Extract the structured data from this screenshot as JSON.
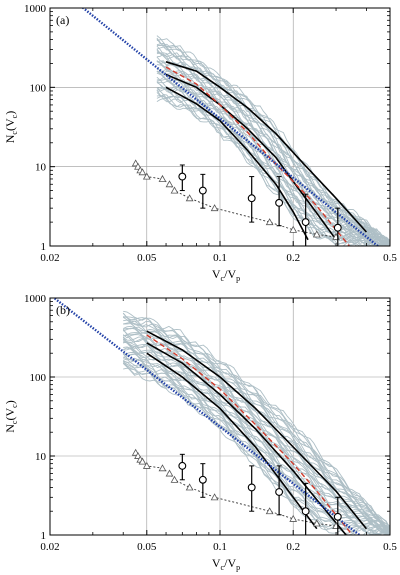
{
  "chart_data": [
    {
      "type": "line",
      "panel_label": "(a)",
      "xlabel": "V_c/V_p",
      "ylabel": "N_c(V_c)",
      "x_scale": "log",
      "y_scale": "log",
      "xlim": [
        0.02,
        0.5
      ],
      "ylim": [
        1,
        1000
      ],
      "x_ticks": [
        0.02,
        0.05,
        0.1,
        0.2,
        0.5
      ],
      "x_tick_labels": [
        "0.02",
        "0.05",
        "0.1",
        "0.2",
        "0.5"
      ],
      "y_ticks": [
        1,
        10,
        100,
        1000
      ],
      "y_tick_labels": [
        "1",
        "10",
        "100",
        "1000"
      ],
      "grid": true,
      "colors": {
        "sims": "#aebfc6",
        "bands": "#000000",
        "median": "#d23b2c",
        "powerlaw": "#2342a8"
      },
      "power_law": {
        "x": [
          0.02,
          0.5
        ],
        "y": [
          2180,
          0.75
        ]
      },
      "median": {
        "x": [
          0.06,
          0.08,
          0.1,
          0.13,
          0.16,
          0.2,
          0.25,
          0.3,
          0.34
        ],
        "y": [
          180,
          110,
          60,
          27,
          13,
          6.5,
          3.2,
          1.6,
          1.0
        ]
      },
      "bands": [
        {
          "x": [
            0.06,
            0.08,
            0.1,
            0.13,
            0.17,
            0.22,
            0.3,
            0.4
          ],
          "y": [
            210,
            160,
            100,
            55,
            26,
            11,
            4.0,
            1.5
          ]
        },
        {
          "x": [
            0.06,
            0.08,
            0.1,
            0.13,
            0.17,
            0.2,
            0.25,
            0.3
          ],
          "y": [
            145,
            100,
            60,
            30,
            13,
            6.5,
            2.6,
            1.2
          ]
        },
        {
          "x": [
            0.06,
            0.08,
            0.1,
            0.13,
            0.17,
            0.2,
            0.23
          ],
          "y": [
            100,
            62,
            38,
            16,
            6.0,
            2.7,
            1.2
          ]
        }
      ],
      "sim_envelope": {
        "x": [
          0.055,
          0.07,
          0.09,
          0.12,
          0.16,
          0.2,
          0.25,
          0.3,
          0.4,
          0.5
        ],
        "upper": [
          480,
          330,
          190,
          100,
          45,
          18,
          7.5,
          4.0,
          2.0,
          1.1
        ],
        "lower": [
          65,
          50,
          32,
          15,
          5.0,
          2.2,
          1.2,
          1.0,
          1.0,
          1.0
        ],
        "n_curves": 40
      },
      "circles": {
        "x": [
          0.07,
          0.085,
          0.135,
          0.175,
          0.225,
          0.305
        ],
        "y": [
          7.5,
          5.0,
          4.0,
          3.5,
          2.0,
          1.7
        ],
        "yerr_low": [
          5.0,
          3.0,
          2.0,
          1.8,
          1.0,
          1.0
        ],
        "yerr_high": [
          10.5,
          8.0,
          7.5,
          7.5,
          4.5,
          3.0
        ]
      },
      "triangles": {
        "x": [
          0.045,
          0.046,
          0.047,
          0.048,
          0.05,
          0.058,
          0.062,
          0.065,
          0.075,
          0.095,
          0.16,
          0.2,
          0.25,
          0.3
        ],
        "y": [
          11,
          10,
          9,
          8.5,
          7.5,
          7,
          6,
          5,
          4,
          3,
          2,
          1.6,
          1.4,
          1.3
        ]
      }
    },
    {
      "type": "line",
      "panel_label": "(b)",
      "xlabel": "V_c/V_p",
      "ylabel": "N_c(V_c)",
      "x_scale": "log",
      "y_scale": "log",
      "xlim": [
        0.02,
        0.5
      ],
      "ylim": [
        1,
        1000
      ],
      "x_ticks": [
        0.02,
        0.05,
        0.1,
        0.2,
        0.5
      ],
      "x_tick_labels": [
        "0.02",
        "0.05",
        "0.1",
        "0.2",
        "0.5"
      ],
      "y_ticks": [
        1,
        10,
        100,
        1000
      ],
      "y_tick_labels": [
        "1",
        "10",
        "100",
        "1000"
      ],
      "grid": true,
      "colors": {
        "sims": "#aebfc6",
        "bands": "#000000",
        "median": "#d23b2c",
        "powerlaw": "#2342a8"
      },
      "power_law": {
        "x": [
          0.02,
          0.5
        ],
        "y": [
          1100,
          0.5
        ]
      },
      "median": {
        "x": [
          0.05,
          0.07,
          0.1,
          0.14,
          0.2,
          0.25,
          0.3,
          0.35
        ],
        "y": [
          340,
          170,
          70,
          25,
          8.0,
          3.6,
          1.8,
          1.0
        ]
      },
      "bands": [
        {
          "x": [
            0.05,
            0.07,
            0.1,
            0.14,
            0.2,
            0.3,
            0.4
          ],
          "y": [
            380,
            220,
            100,
            40,
            13,
            3.6,
            1.2
          ]
        },
        {
          "x": [
            0.05,
            0.07,
            0.1,
            0.14,
            0.2,
            0.25,
            0.33
          ],
          "y": [
            270,
            150,
            60,
            22,
            6.5,
            2.8,
            1.0
          ]
        },
        {
          "x": [
            0.05,
            0.07,
            0.1,
            0.14,
            0.2,
            0.25
          ],
          "y": [
            200,
            100,
            40,
            13,
            3.0,
            1.2
          ]
        }
      ],
      "sim_envelope": {
        "x": [
          0.04,
          0.05,
          0.07,
          0.1,
          0.14,
          0.2,
          0.28,
          0.35,
          0.45,
          0.5
        ],
        "upper": [
          700,
          600,
          380,
          180,
          80,
          30,
          9.0,
          4.0,
          1.8,
          1.2
        ],
        "lower": [
          120,
          90,
          50,
          20,
          7.0,
          2.0,
          1.0,
          1.0,
          1.0,
          1.0
        ],
        "n_curves": 40
      },
      "circles": {
        "x": [
          0.07,
          0.085,
          0.135,
          0.175,
          0.225,
          0.305
        ],
        "y": [
          7.5,
          5.0,
          4.0,
          3.5,
          2.0,
          1.7
        ],
        "yerr_low": [
          5.0,
          3.0,
          2.0,
          1.8,
          1.0,
          1.0
        ],
        "yerr_high": [
          10.5,
          8.0,
          7.5,
          7.5,
          4.5,
          3.0
        ]
      },
      "triangles": {
        "x": [
          0.045,
          0.046,
          0.047,
          0.048,
          0.05,
          0.058,
          0.062,
          0.065,
          0.075,
          0.095,
          0.16,
          0.2,
          0.25,
          0.3
        ],
        "y": [
          11,
          10,
          9,
          8.5,
          7.5,
          7,
          6,
          5,
          4,
          3,
          2,
          1.6,
          1.4,
          1.3
        ]
      }
    }
  ]
}
